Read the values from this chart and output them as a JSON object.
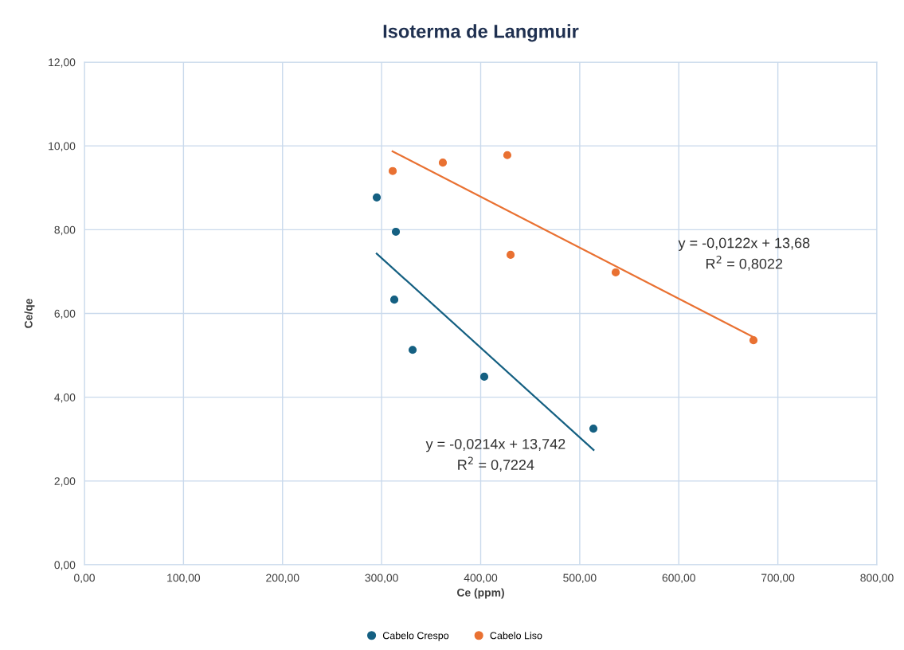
{
  "chart_data": {
    "type": "scatter",
    "title": "Isoterma de Langmuir",
    "xlabel": "Ce (ppm)",
    "ylabel": "Ce/qe",
    "series": [
      {
        "name": "Cabelo Crespo",
        "color": "#156082",
        "marker": "circle",
        "x": [
          295.1,
          314.4,
          312.8,
          331.3,
          403.6,
          513.8
        ],
        "values": [
          8.77,
          7.95,
          6.33,
          5.13,
          4.49,
          3.25
        ]
      },
      {
        "name": "Cabelo Liso",
        "color": "#e97132",
        "marker": "circle",
        "x": [
          311.2,
          361.8,
          426.9,
          430.2,
          536.3,
          675.4
        ],
        "values": [
          9.4,
          9.6,
          9.78,
          7.4,
          6.98,
          5.36
        ]
      },
      {
        "type": "line",
        "marker": "none",
        "color": "#156082",
        "x": [
          295,
          514
        ],
        "values": [
          7.43,
          2.74
        ]
      },
      {
        "type": "line",
        "marker": "none",
        "color": "#e97132",
        "x": [
          311,
          675
        ],
        "values": [
          9.87,
          5.44
        ]
      }
    ],
    "annotations": [
      "y = -0,0214x + 13,742\nR$^{2}$ = 0,7224",
      "y = -0,0122x + 13,68\nR$^{2}$ = 0,8022"
    ],
    "xlim": [
      0,
      800
    ],
    "ylim": [
      0,
      12
    ],
    "xticks": [
      {
        "value": 0,
        "label": "0,00"
      },
      {
        "value": 100,
        "label": "100,00"
      },
      {
        "value": 200,
        "label": "200,00"
      },
      {
        "value": 300,
        "label": "300,00"
      },
      {
        "value": 400,
        "label": "400,00"
      },
      {
        "value": 500,
        "label": "500,00"
      },
      {
        "value": 600,
        "label": "600,00"
      },
      {
        "value": 700,
        "label": "700,00"
      },
      {
        "value": 800,
        "label": "800,00"
      }
    ],
    "yticks": [
      {
        "value": 0,
        "label": "0,00"
      },
      {
        "value": 2,
        "label": "2,00"
      },
      {
        "value": 4,
        "label": "4,00"
      },
      {
        "value": 6,
        "label": "6,00"
      },
      {
        "value": 8,
        "label": "8,00"
      },
      {
        "value": 10,
        "label": "10,00"
      },
      {
        "value": 12,
        "label": "12,00"
      }
    ],
    "grid": true,
    "legend": "bottom"
  }
}
